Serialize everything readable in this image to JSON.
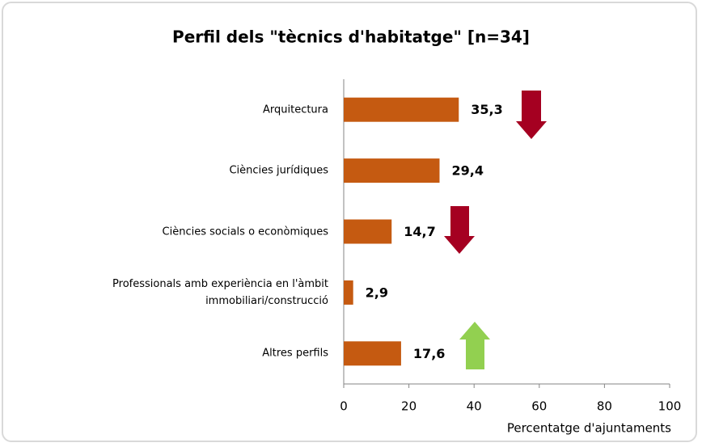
{
  "chart_data": {
    "type": "bar",
    "orientation": "horizontal",
    "title": "Perfil dels \"tècnics d'habitatge\" [n=34]",
    "categories": [
      "Arquitectura",
      "Ciències jurídiques",
      "Ciències socials o econòmiques",
      "Professionals amb experiència en l'àmbit immobiliari/construcció",
      "Altres perfils"
    ],
    "values": [
      35.3,
      29.4,
      14.7,
      2.9,
      17.6
    ],
    "value_labels": [
      "35,3",
      "29,4",
      "14,7",
      "2,9",
      "17,6"
    ],
    "color": "#c55a11",
    "xlabel": "Percentatge d'ajuntaments",
    "xlim": [
      0,
      100
    ],
    "xticks": [
      0,
      20,
      40,
      60,
      80,
      100
    ],
    "grid": false
  }
}
